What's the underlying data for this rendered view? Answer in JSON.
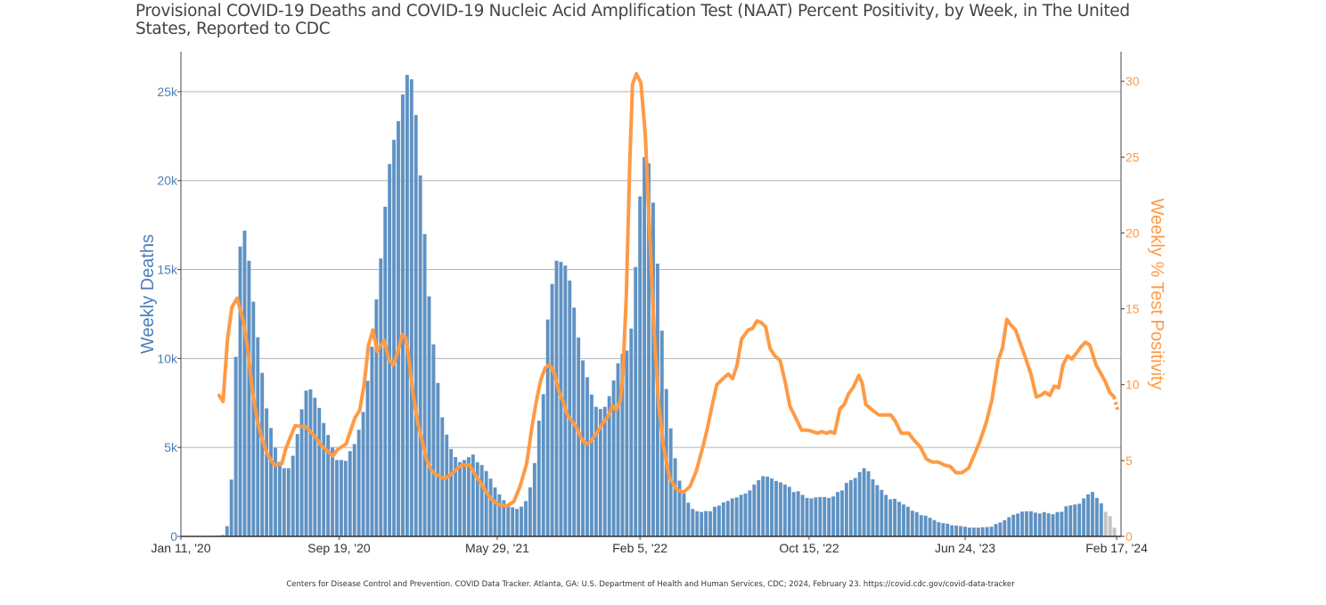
{
  "chart_data": {
    "type": "bar+line",
    "title": "Provisional COVID-19 Deaths and COVID-19 Nucleic Acid Amplification Test (NAAT) Percent Positivity, by Week, in The United States, Reported to CDC",
    "x_unit": "week index starting Jan 11, '20",
    "x_range": [
      0,
      214
    ],
    "x_ticks": [
      {
        "week": 0,
        "label": "Jan 11, '20"
      },
      {
        "week": 36,
        "label": "Sep 19, '20"
      },
      {
        "week": 72,
        "label": "May 29, '21"
      },
      {
        "week": 104.5,
        "label": "Feb 5, '22"
      },
      {
        "week": 143,
        "label": "Oct 15, '22"
      },
      {
        "week": 178.5,
        "label": "Jun 24, '23"
      },
      {
        "week": 213,
        "label": "Feb 17, '24"
      }
    ],
    "y_left": {
      "label": "Weekly Deaths",
      "range": [
        0,
        27250
      ],
      "ticks": [
        {
          "value": 0,
          "label": "0"
        },
        {
          "value": 5000,
          "label": "5k"
        },
        {
          "value": 10000,
          "label": "10k"
        },
        {
          "value": 15000,
          "label": "15k"
        },
        {
          "value": 20000,
          "label": "20k"
        },
        {
          "value": 25000,
          "label": "25k"
        }
      ]
    },
    "y_right": {
      "label": "Weekly % Test Positivity",
      "range": [
        0,
        31.95
      ],
      "ticks": [
        {
          "value": 0,
          "label": "0"
        },
        {
          "value": 5,
          "label": "5"
        },
        {
          "value": 10,
          "label": "10"
        },
        {
          "value": 15,
          "label": "15"
        },
        {
          "value": 20,
          "label": "20"
        },
        {
          "value": 25,
          "label": "25"
        },
        {
          "value": 30,
          "label": "30"
        }
      ]
    },
    "grid": "horizontal, left-axis ticks",
    "colors": {
      "deaths": "#5f92c3",
      "deaths_incomplete": "#c3c3c6",
      "positivity": "#ff9a45",
      "left_axis": "#4a7fb8",
      "right_axis": "#ff9a45"
    },
    "series": [
      {
        "name": "Weekly Deaths",
        "type": "bar",
        "axis": "left",
        "incomplete_last_weeks": 3,
        "values": [
          0,
          0,
          0,
          0,
          0,
          0,
          0,
          30,
          50,
          80,
          580,
          3200,
          10100,
          16300,
          17200,
          15500,
          13200,
          11200,
          9200,
          7200,
          6100,
          5000,
          4200,
          3840,
          3840,
          4540,
          5760,
          7150,
          8200,
          8270,
          7800,
          7230,
          6380,
          5710,
          5010,
          4300,
          4300,
          4250,
          4800,
          5200,
          6000,
          7000,
          8750,
          10670,
          13330,
          15630,
          18540,
          20940,
          22300,
          23350,
          24850,
          25950,
          25700,
          23700,
          20300,
          17000,
          13500,
          10800,
          8630,
          6700,
          5730,
          4920,
          4460,
          4180,
          4300,
          4460,
          4610,
          4180,
          4020,
          3680,
          3250,
          2760,
          2370,
          2040,
          1810,
          1640,
          1550,
          1680,
          1990,
          2760,
          4130,
          6510,
          8000,
          12200,
          14200,
          15500,
          15440,
          15230,
          14390,
          12870,
          11190,
          9900,
          8950,
          7980,
          7290,
          7170,
          7290,
          7890,
          8770,
          9740,
          10260,
          10450,
          11690,
          15150,
          19120,
          21330,
          20980,
          18770,
          15340,
          11570,
          8290,
          6080,
          4400,
          3140,
          2420,
          1900,
          1550,
          1420,
          1380,
          1430,
          1420,
          1670,
          1740,
          1920,
          2000,
          2140,
          2200,
          2340,
          2420,
          2590,
          2920,
          3170,
          3390,
          3370,
          3260,
          3120,
          3040,
          2920,
          2790,
          2500,
          2540,
          2340,
          2170,
          2140,
          2200,
          2220,
          2220,
          2170,
          2250,
          2500,
          2590,
          3010,
          3170,
          3290,
          3620,
          3840,
          3670,
          3220,
          2890,
          2620,
          2340,
          2090,
          2120,
          1950,
          1800,
          1670,
          1450,
          1370,
          1200,
          1170,
          1050,
          920,
          800,
          750,
          720,
          630,
          620,
          580,
          550,
          500,
          500,
          500,
          520,
          530,
          550,
          700,
          790,
          920,
          1090,
          1220,
          1290,
          1400,
          1420,
          1420,
          1340,
          1290,
          1370,
          1300,
          1250,
          1370,
          1390,
          1700,
          1750,
          1800,
          1840,
          2140,
          2370,
          2500,
          2170,
          1870,
          1390,
          1140,
          500
        ]
      },
      {
        "name": "Weekly % Test Positivity",
        "type": "line",
        "axis": "right",
        "points": [
          [
            8.7,
            9.3
          ],
          [
            9.6,
            8.9
          ],
          [
            10.6,
            13.0
          ],
          [
            11.6,
            15.1
          ],
          [
            12.8,
            15.7
          ],
          [
            14.2,
            14.2
          ],
          [
            15.2,
            12.4
          ],
          [
            16.3,
            9.5
          ],
          [
            17.3,
            7.8
          ],
          [
            18.3,
            6.6
          ],
          [
            19.7,
            5.4
          ],
          [
            21.3,
            4.7
          ],
          [
            23.0,
            4.8
          ],
          [
            23.8,
            5.7
          ],
          [
            25.0,
            6.6
          ],
          [
            26.0,
            7.3
          ],
          [
            28.5,
            7.2
          ],
          [
            30.5,
            6.6
          ],
          [
            31.9,
            6.0
          ],
          [
            33.1,
            5.7
          ],
          [
            34.6,
            5.3
          ],
          [
            35.6,
            5.7
          ],
          [
            37.6,
            6.1
          ],
          [
            39.6,
            7.8
          ],
          [
            40.7,
            8.3
          ],
          [
            41.7,
            10.0
          ],
          [
            42.7,
            12.6
          ],
          [
            43.7,
            13.6
          ],
          [
            44.7,
            12.2
          ],
          [
            45.7,
            12.7
          ],
          [
            46.3,
            12.9
          ],
          [
            47.4,
            11.6
          ],
          [
            48.4,
            11.3
          ],
          [
            49.4,
            12.2
          ],
          [
            50.4,
            13.3
          ],
          [
            51.2,
            13.1
          ],
          [
            51.8,
            11.9
          ],
          [
            52.8,
            9.5
          ],
          [
            53.9,
            7.5
          ],
          [
            54.9,
            6.3
          ],
          [
            55.9,
            5.1
          ],
          [
            56.9,
            4.4
          ],
          [
            57.9,
            4.1
          ],
          [
            60.0,
            3.8
          ],
          [
            61.6,
            4.1
          ],
          [
            63.0,
            4.5
          ],
          [
            64.0,
            4.7
          ],
          [
            65.7,
            4.7
          ],
          [
            66.7,
            4.2
          ],
          [
            68.1,
            3.6
          ],
          [
            69.1,
            3.1
          ],
          [
            70.5,
            2.5
          ],
          [
            72.2,
            2.1
          ],
          [
            74.2,
            2.0
          ],
          [
            75.8,
            2.3
          ],
          [
            77.2,
            3.3
          ],
          [
            78.7,
            4.8
          ],
          [
            79.9,
            7.2
          ],
          [
            80.9,
            8.9
          ],
          [
            81.9,
            10.3
          ],
          [
            82.9,
            11.1
          ],
          [
            83.9,
            11.3
          ],
          [
            85.0,
            10.8
          ],
          [
            86.0,
            9.6
          ],
          [
            87.0,
            8.9
          ],
          [
            88.0,
            8.0
          ],
          [
            89.0,
            7.6
          ],
          [
            90.0,
            7.2
          ],
          [
            91.1,
            6.5
          ],
          [
            92.1,
            6.1
          ],
          [
            93.1,
            6.2
          ],
          [
            94.1,
            6.6
          ],
          [
            95.1,
            7.0
          ],
          [
            96.1,
            7.5
          ],
          [
            97.2,
            7.9
          ],
          [
            98.2,
            8.6
          ],
          [
            99.0,
            8.3
          ],
          [
            100.0,
            8.9
          ],
          [
            100.6,
            10.6
          ],
          [
            101.4,
            16.0
          ],
          [
            102.2,
            24.8
          ],
          [
            102.8,
            29.8
          ],
          [
            103.7,
            30.5
          ],
          [
            104.7,
            29.9
          ],
          [
            105.7,
            26.5
          ],
          [
            106.7,
            20.1
          ],
          [
            107.7,
            13.6
          ],
          [
            108.7,
            8.9
          ],
          [
            109.8,
            6.0
          ],
          [
            111.2,
            3.9
          ],
          [
            112.8,
            3.1
          ],
          [
            114.4,
            2.9
          ],
          [
            115.9,
            3.3
          ],
          [
            117.3,
            4.3
          ],
          [
            118.9,
            6.0
          ],
          [
            119.9,
            7.2
          ],
          [
            120.9,
            8.6
          ],
          [
            122.0,
            10.0
          ],
          [
            123.4,
            10.4
          ],
          [
            124.6,
            10.7
          ],
          [
            125.6,
            10.4
          ],
          [
            126.6,
            11.3
          ],
          [
            127.6,
            13.0
          ],
          [
            129.1,
            13.6
          ],
          [
            130.1,
            13.7
          ],
          [
            131.1,
            14.2
          ],
          [
            132.1,
            14.1
          ],
          [
            133.1,
            13.8
          ],
          [
            134.1,
            12.4
          ],
          [
            135.2,
            11.9
          ],
          [
            136.4,
            11.6
          ],
          [
            137.6,
            10.1
          ],
          [
            138.6,
            8.6
          ],
          [
            139.8,
            7.9
          ],
          [
            141.3,
            7.0
          ],
          [
            142.7,
            7.0
          ],
          [
            143.9,
            6.9
          ],
          [
            144.9,
            6.8
          ],
          [
            145.9,
            6.9
          ],
          [
            147.0,
            6.8
          ],
          [
            147.8,
            6.9
          ],
          [
            148.8,
            6.8
          ],
          [
            150.0,
            8.4
          ],
          [
            151.0,
            8.7
          ],
          [
            152.0,
            9.4
          ],
          [
            153.0,
            9.8
          ],
          [
            154.3,
            10.6
          ],
          [
            155.1,
            10.1
          ],
          [
            155.9,
            8.7
          ],
          [
            157.5,
            8.3
          ],
          [
            158.9,
            8.0
          ],
          [
            160.2,
            8.0
          ],
          [
            161.6,
            8.0
          ],
          [
            162.6,
            7.6
          ],
          [
            164.0,
            6.8
          ],
          [
            165.7,
            6.8
          ],
          [
            166.7,
            6.4
          ],
          [
            168.3,
            5.9
          ],
          [
            169.7,
            5.1
          ],
          [
            171.1,
            4.9
          ],
          [
            172.4,
            4.9
          ],
          [
            173.8,
            4.7
          ],
          [
            175.2,
            4.6
          ],
          [
            176.4,
            4.2
          ],
          [
            177.8,
            4.2
          ],
          [
            179.3,
            4.5
          ],
          [
            180.5,
            5.3
          ],
          [
            181.9,
            6.3
          ],
          [
            183.3,
            7.5
          ],
          [
            184.6,
            9.0
          ],
          [
            186.0,
            11.6
          ],
          [
            187.0,
            12.4
          ],
          [
            188.0,
            14.3
          ],
          [
            189.0,
            13.9
          ],
          [
            190.0,
            13.6
          ],
          [
            191.1,
            12.7
          ],
          [
            192.1,
            11.9
          ],
          [
            193.5,
            10.7
          ],
          [
            194.7,
            9.2
          ],
          [
            195.7,
            9.3
          ],
          [
            196.7,
            9.5
          ],
          [
            197.8,
            9.3
          ],
          [
            198.8,
            9.9
          ],
          [
            199.8,
            9.8
          ],
          [
            200.8,
            11.3
          ],
          [
            201.8,
            11.9
          ],
          [
            202.8,
            11.7
          ],
          [
            203.9,
            12.1
          ],
          [
            204.9,
            12.5
          ],
          [
            205.9,
            12.8
          ],
          [
            206.9,
            12.6
          ],
          [
            208.3,
            11.3
          ],
          [
            209.3,
            10.8
          ],
          [
            210.4,
            10.2
          ],
          [
            211.4,
            9.5
          ],
          [
            212.4,
            9.2
          ]
        ],
        "projected_points": [
          [
            212.4,
            9.2
          ],
          [
            213.3,
            8.3
          ]
        ]
      }
    ],
    "footer": "Centers for Disease Control and Prevention. COVID Data Tracker. Atlanta, GA: U.S. Department of Health and Human Services, CDC; 2024, February 23. https://covid.cdc.gov/covid-data-tracker"
  }
}
